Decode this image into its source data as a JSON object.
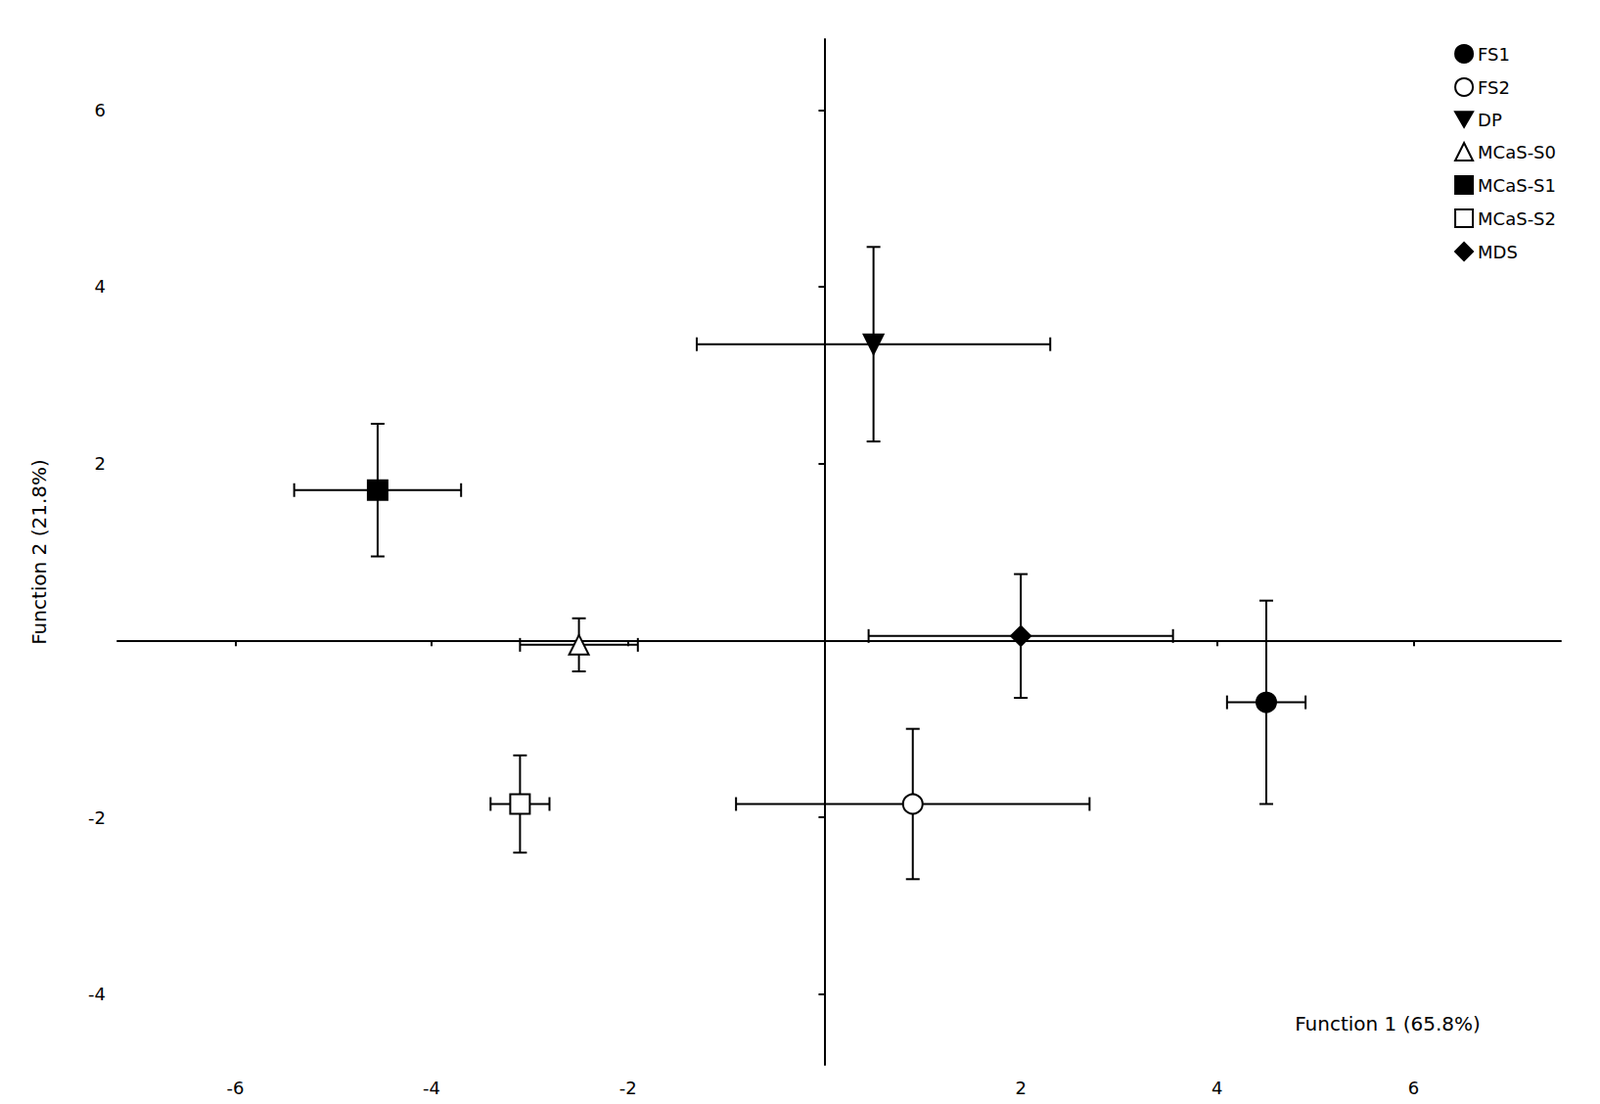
{
  "chart_data": {
    "type": "scatter",
    "xlabel": "Function 1 (65.8%)",
    "ylabel": "Function 2 (21.8%)",
    "xlim": [
      -7.2,
      7.5
    ],
    "ylim": [
      -4.8,
      6.8
    ],
    "xticks": [
      -6,
      -4,
      -2,
      2,
      4,
      6
    ],
    "yticks": [
      -4,
      -2,
      2,
      4,
      6
    ],
    "grid": false,
    "legend": "upper right",
    "series": [
      {
        "name": "FS1",
        "marker": "circle",
        "color": "black",
        "x": [
          4.5
        ],
        "values": [
          -0.7
        ],
        "xerr": [
          0.4
        ],
        "yerr": [
          1.15
        ]
      },
      {
        "name": "FS2",
        "marker": "circle",
        "color": "white",
        "x": [
          0.9
        ],
        "values": [
          -1.85
        ],
        "xerr": [
          1.8
        ],
        "yerr": [
          0.85
        ]
      },
      {
        "name": "DP",
        "marker": "triangle_down",
        "color": "black",
        "x": [
          0.5
        ],
        "values": [
          3.35
        ],
        "xerr": [
          1.8
        ],
        "yerr": [
          1.1
        ]
      },
      {
        "name": "MCaS-S0",
        "marker": "triangle",
        "color": "white",
        "x": [
          -2.5
        ],
        "values": [
          -0.05
        ],
        "xerr": [
          0.6
        ],
        "yerr": [
          0.3
        ]
      },
      {
        "name": "MCaS-S1",
        "marker": "square",
        "color": "black",
        "x": [
          -4.55
        ],
        "values": [
          1.7
        ],
        "xerr": [
          0.85
        ],
        "yerr": [
          0.75
        ]
      },
      {
        "name": "MCaS-S2",
        "marker": "square",
        "color": "white",
        "x": [
          -3.1
        ],
        "values": [
          -1.85
        ],
        "xerr": [
          0.3
        ],
        "yerr": [
          0.55
        ]
      },
      {
        "name": "MDS",
        "marker": "diamond",
        "color": "black",
        "x": [
          2.0
        ],
        "values": [
          0.05
        ],
        "xerr": [
          1.55
        ],
        "yerr": [
          0.7
        ]
      }
    ]
  }
}
